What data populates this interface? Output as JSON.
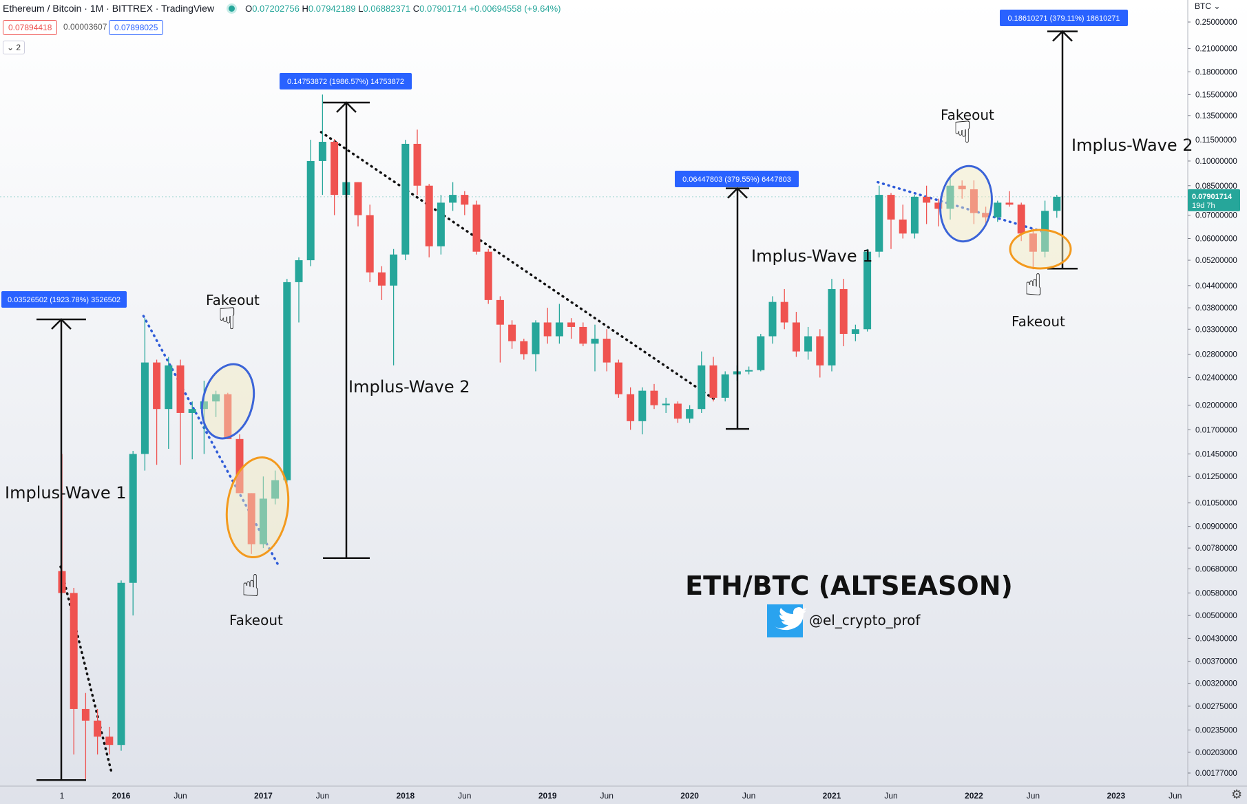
{
  "header": {
    "symbol": "Ethereum / Bitcoin · 1M · BITTREX · TradingView",
    "open_label": "O",
    "open": "0.07202756",
    "high_label": "H",
    "high": "0.07942189",
    "low_label": "L",
    "low": "0.06882371",
    "close_label": "C",
    "close": "0.07901714",
    "change": "+0.00694558 (+9.64%)",
    "bid": "0.07894418",
    "spread": "0.00003607",
    "ask": "0.07898025",
    "collapse_label": "⌄ 2",
    "currency": "BTC ⌄",
    "settings_icon": "⚙"
  },
  "colors": {
    "up": "#26a69a",
    "down": "#ef5350",
    "label_bg": "#2962ff",
    "blue_circle": "#3b64d8",
    "orange_circle": "#f39a1e"
  },
  "chart_data": {
    "type": "candlestick",
    "title": "ETH/BTC (ALTSEASON)",
    "watermark": "@el_crypto_prof",
    "y_scale": "log",
    "ylim": [
      0.00165,
      0.27
    ],
    "x_ticks": [
      "1",
      "2016",
      "Jun",
      "2017",
      "Jun",
      "2018",
      "Jun",
      "2019",
      "Jun",
      "2020",
      "Jun",
      "2021",
      "Jun",
      "2022",
      "Jun",
      "2023",
      "Jun"
    ],
    "y_ticks": [
      "0.25000000",
      "0.21000000",
      "0.18000000",
      "0.15500000",
      "0.13500000",
      "0.11500000",
      "0.10000000",
      "0.08500000",
      "0.07000000",
      "0.06000000",
      "0.05200000",
      "0.04400000",
      "0.03800000",
      "0.03300000",
      "0.02800000",
      "0.02400000",
      "0.02000000",
      "0.01700000",
      "0.01450000",
      "0.01250000",
      "0.01050000",
      "0.00900000",
      "0.00780000",
      "0.00680000",
      "0.00580000",
      "0.00500000",
      "0.00430000",
      "0.00370000",
      "0.00320000",
      "0.00275000",
      "0.00235000",
      "0.00203000",
      "0.00177000"
    ],
    "current_price": "0.07901714",
    "current_countdown": "19d 7h",
    "candles": [
      {
        "t": "2015-08",
        "o": 0.0067,
        "h": 0.0145,
        "l": 0.0058,
        "c": 0.0058
      },
      {
        "t": "2015-09",
        "o": 0.0058,
        "h": 0.006,
        "l": 0.002,
        "c": 0.0027
      },
      {
        "t": "2015-10",
        "o": 0.0027,
        "h": 0.003,
        "l": 0.0017,
        "c": 0.0025
      },
      {
        "t": "2015-11",
        "o": 0.0025,
        "h": 0.0027,
        "l": 0.002,
        "c": 0.00225
      },
      {
        "t": "2015-12",
        "o": 0.00225,
        "h": 0.0024,
        "l": 0.002,
        "c": 0.00213
      },
      {
        "t": "2016-01",
        "o": 0.00213,
        "h": 0.0063,
        "l": 0.00205,
        "c": 0.0062
      },
      {
        "t": "2016-02",
        "o": 0.0062,
        "h": 0.0148,
        "l": 0.005,
        "c": 0.0145
      },
      {
        "t": "2016-03",
        "o": 0.0145,
        "h": 0.0355,
        "l": 0.013,
        "c": 0.0265
      },
      {
        "t": "2016-04",
        "o": 0.0265,
        "h": 0.027,
        "l": 0.0135,
        "c": 0.0195
      },
      {
        "t": "2016-05",
        "o": 0.0195,
        "h": 0.0275,
        "l": 0.015,
        "c": 0.026
      },
      {
        "t": "2016-06",
        "o": 0.026,
        "h": 0.027,
        "l": 0.0135,
        "c": 0.019
      },
      {
        "t": "2016-07",
        "o": 0.019,
        "h": 0.0205,
        "l": 0.014,
        "c": 0.0195
      },
      {
        "t": "2016-08",
        "o": 0.0195,
        "h": 0.0235,
        "l": 0.0145,
        "c": 0.0205
      },
      {
        "t": "2016-09",
        "o": 0.0205,
        "h": 0.022,
        "l": 0.0185,
        "c": 0.0215
      },
      {
        "t": "2016-10",
        "o": 0.0215,
        "h": 0.0217,
        "l": 0.016,
        "c": 0.016
      },
      {
        "t": "2016-11",
        "o": 0.016,
        "h": 0.0165,
        "l": 0.0112,
        "c": 0.0112
      },
      {
        "t": "2016-12",
        "o": 0.0112,
        "h": 0.0112,
        "l": 0.0075,
        "c": 0.008
      },
      {
        "t": "2017-01",
        "o": 0.008,
        "h": 0.0125,
        "l": 0.0078,
        "c": 0.0108
      },
      {
        "t": "2017-02",
        "o": 0.0108,
        "h": 0.013,
        "l": 0.0104,
        "c": 0.0122
      },
      {
        "t": "2017-03",
        "o": 0.0122,
        "h": 0.046,
        "l": 0.012,
        "c": 0.045
      },
      {
        "t": "2017-04",
        "o": 0.045,
        "h": 0.053,
        "l": 0.0345,
        "c": 0.052
      },
      {
        "t": "2017-05",
        "o": 0.052,
        "h": 0.115,
        "l": 0.05,
        "c": 0.1
      },
      {
        "t": "2017-06",
        "o": 0.1,
        "h": 0.155,
        "l": 0.08,
        "c": 0.1135
      },
      {
        "t": "2017-07",
        "o": 0.1135,
        "h": 0.1155,
        "l": 0.07,
        "c": 0.08
      },
      {
        "t": "2017-08",
        "o": 0.08,
        "h": 0.09,
        "l": 0.07,
        "c": 0.087
      },
      {
        "t": "2017-09",
        "o": 0.087,
        "h": 0.087,
        "l": 0.065,
        "c": 0.07
      },
      {
        "t": "2017-10",
        "o": 0.07,
        "h": 0.075,
        "l": 0.045,
        "c": 0.048
      },
      {
        "t": "2017-11",
        "o": 0.048,
        "h": 0.05,
        "l": 0.04,
        "c": 0.044
      },
      {
        "t": "2017-12",
        "o": 0.044,
        "h": 0.056,
        "l": 0.026,
        "c": 0.054
      },
      {
        "t": "2018-01",
        "o": 0.054,
        "h": 0.115,
        "l": 0.052,
        "c": 0.112
      },
      {
        "t": "2018-02",
        "o": 0.112,
        "h": 0.123,
        "l": 0.08,
        "c": 0.085
      },
      {
        "t": "2018-03",
        "o": 0.085,
        "h": 0.086,
        "l": 0.053,
        "c": 0.057
      },
      {
        "t": "2018-04",
        "o": 0.057,
        "h": 0.08,
        "l": 0.054,
        "c": 0.076
      },
      {
        "t": "2018-05",
        "o": 0.076,
        "h": 0.087,
        "l": 0.072,
        "c": 0.08
      },
      {
        "t": "2018-06",
        "o": 0.08,
        "h": 0.082,
        "l": 0.07,
        "c": 0.075
      },
      {
        "t": "2018-07",
        "o": 0.075,
        "h": 0.077,
        "l": 0.054,
        "c": 0.055
      },
      {
        "t": "2018-08",
        "o": 0.055,
        "h": 0.056,
        "l": 0.039,
        "c": 0.04
      },
      {
        "t": "2018-09",
        "o": 0.04,
        "h": 0.041,
        "l": 0.0265,
        "c": 0.034
      },
      {
        "t": "2018-10",
        "o": 0.034,
        "h": 0.035,
        "l": 0.029,
        "c": 0.0305
      },
      {
        "t": "2018-11",
        "o": 0.0305,
        "h": 0.031,
        "l": 0.027,
        "c": 0.028
      },
      {
        "t": "2018-12",
        "o": 0.028,
        "h": 0.035,
        "l": 0.025,
        "c": 0.0345
      },
      {
        "t": "2019-01",
        "o": 0.0345,
        "h": 0.038,
        "l": 0.03,
        "c": 0.0315
      },
      {
        "t": "2019-02",
        "o": 0.0315,
        "h": 0.039,
        "l": 0.03,
        "c": 0.0345
      },
      {
        "t": "2019-03",
        "o": 0.0345,
        "h": 0.0355,
        "l": 0.031,
        "c": 0.0335
      },
      {
        "t": "2019-04",
        "o": 0.0335,
        "h": 0.0345,
        "l": 0.0295,
        "c": 0.03
      },
      {
        "t": "2019-05",
        "o": 0.03,
        "h": 0.034,
        "l": 0.025,
        "c": 0.031
      },
      {
        "t": "2019-06",
        "o": 0.031,
        "h": 0.033,
        "l": 0.025,
        "c": 0.0265
      },
      {
        "t": "2019-07",
        "o": 0.0265,
        "h": 0.027,
        "l": 0.021,
        "c": 0.0215
      },
      {
        "t": "2019-08",
        "o": 0.0215,
        "h": 0.0225,
        "l": 0.017,
        "c": 0.018
      },
      {
        "t": "2019-09",
        "o": 0.018,
        "h": 0.0225,
        "l": 0.0165,
        "c": 0.022
      },
      {
        "t": "2019-10",
        "o": 0.022,
        "h": 0.023,
        "l": 0.0195,
        "c": 0.02
      },
      {
        "t": "2019-11",
        "o": 0.02,
        "h": 0.021,
        "l": 0.019,
        "c": 0.0202
      },
      {
        "t": "2019-12",
        "o": 0.0202,
        "h": 0.0205,
        "l": 0.0178,
        "c": 0.0183
      },
      {
        "t": "2020-01",
        "o": 0.0183,
        "h": 0.02,
        "l": 0.0178,
        "c": 0.0195
      },
      {
        "t": "2020-02",
        "o": 0.0195,
        "h": 0.0285,
        "l": 0.019,
        "c": 0.026
      },
      {
        "t": "2020-03",
        "o": 0.026,
        "h": 0.0275,
        "l": 0.0205,
        "c": 0.021
      },
      {
        "t": "2020-04",
        "o": 0.021,
        "h": 0.025,
        "l": 0.0205,
        "c": 0.0245
      },
      {
        "t": "2020-05",
        "o": 0.0245,
        "h": 0.026,
        "l": 0.0235,
        "c": 0.025
      },
      {
        "t": "2020-06",
        "o": 0.025,
        "h": 0.0258,
        "l": 0.0245,
        "c": 0.0252
      },
      {
        "t": "2020-07",
        "o": 0.0252,
        "h": 0.032,
        "l": 0.025,
        "c": 0.0315
      },
      {
        "t": "2020-08",
        "o": 0.0315,
        "h": 0.041,
        "l": 0.03,
        "c": 0.0395
      },
      {
        "t": "2020-09",
        "o": 0.0395,
        "h": 0.043,
        "l": 0.033,
        "c": 0.0345
      },
      {
        "t": "2020-10",
        "o": 0.0345,
        "h": 0.037,
        "l": 0.0275,
        "c": 0.0285
      },
      {
        "t": "2020-11",
        "o": 0.0285,
        "h": 0.0335,
        "l": 0.027,
        "c": 0.0315
      },
      {
        "t": "2020-12",
        "o": 0.0315,
        "h": 0.033,
        "l": 0.024,
        "c": 0.026
      },
      {
        "t": "2021-01",
        "o": 0.026,
        "h": 0.046,
        "l": 0.025,
        "c": 0.043
      },
      {
        "t": "2021-02",
        "o": 0.043,
        "h": 0.046,
        "l": 0.0295,
        "c": 0.032
      },
      {
        "t": "2021-03",
        "o": 0.032,
        "h": 0.034,
        "l": 0.0305,
        "c": 0.033
      },
      {
        "t": "2021-04",
        "o": 0.033,
        "h": 0.056,
        "l": 0.0325,
        "c": 0.055
      },
      {
        "t": "2021-05",
        "o": 0.055,
        "h": 0.085,
        "l": 0.053,
        "c": 0.08
      },
      {
        "t": "2021-06",
        "o": 0.08,
        "h": 0.081,
        "l": 0.056,
        "c": 0.068
      },
      {
        "t": "2021-07",
        "o": 0.068,
        "h": 0.075,
        "l": 0.06,
        "c": 0.062
      },
      {
        "t": "2021-08",
        "o": 0.062,
        "h": 0.08,
        "l": 0.06,
        "c": 0.079
      },
      {
        "t": "2021-09",
        "o": 0.079,
        "h": 0.085,
        "l": 0.066,
        "c": 0.076
      },
      {
        "t": "2021-10",
        "o": 0.076,
        "h": 0.078,
        "l": 0.065,
        "c": 0.073
      },
      {
        "t": "2021-11",
        "o": 0.073,
        "h": 0.09,
        "l": 0.068,
        "c": 0.085
      },
      {
        "t": "2021-12",
        "o": 0.085,
        "h": 0.088,
        "l": 0.078,
        "c": 0.083
      },
      {
        "t": "2022-01",
        "o": 0.083,
        "h": 0.088,
        "l": 0.066,
        "c": 0.071
      },
      {
        "t": "2022-02",
        "o": 0.071,
        "h": 0.074,
        "l": 0.065,
        "c": 0.069
      },
      {
        "t": "2022-03",
        "o": 0.069,
        "h": 0.077,
        "l": 0.067,
        "c": 0.076
      },
      {
        "t": "2022-04",
        "o": 0.076,
        "h": 0.082,
        "l": 0.074,
        "c": 0.075
      },
      {
        "t": "2022-05",
        "o": 0.075,
        "h": 0.076,
        "l": 0.059,
        "c": 0.062
      },
      {
        "t": "2022-06",
        "o": 0.062,
        "h": 0.064,
        "l": 0.049,
        "c": 0.055
      },
      {
        "t": "2022-07",
        "o": 0.055,
        "h": 0.077,
        "l": 0.053,
        "c": 0.072
      },
      {
        "t": "2022-08",
        "o": 0.072,
        "h": 0.08,
        "l": 0.0688,
        "c": 0.079
      }
    ],
    "annotations": {
      "texts": [
        "Implus-Wave 1",
        "Implus-Wave 2",
        "Implus-Wave 1",
        "Implus-Wave 2",
        "Fakeout",
        "Fakeout",
        "Fakeout",
        "Fakeout"
      ],
      "measure_labels": [
        "0.03526502 (1923.78%) 3526502",
        "0.14753872 (1986.57%) 14753872",
        "0.06447803 (379.55%) 6447803",
        "0.18610271 (379.11%) 18610271"
      ]
    }
  }
}
